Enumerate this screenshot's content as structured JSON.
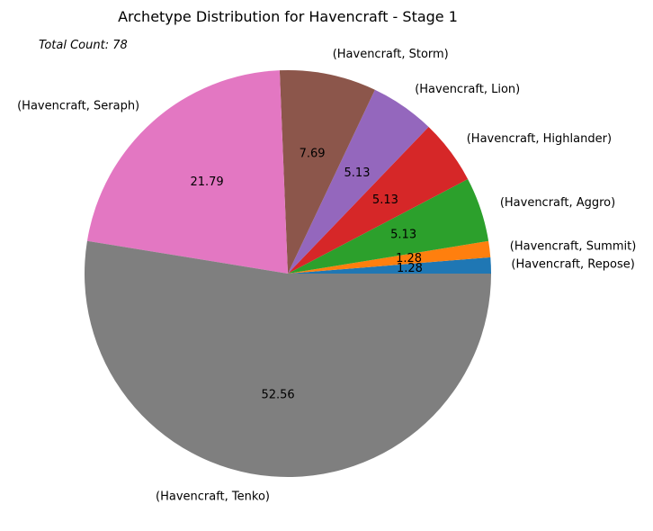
{
  "chart_data": {
    "type": "pie",
    "title": "Archetype Distribution for Havencraft - Stage 1",
    "annotation": "Total Count: 78",
    "start_angle_deg": 0,
    "direction": "counterclockwise",
    "slices": [
      {
        "label": "(Havencraft, Repose)",
        "value": 1.28,
        "value_label": "1.28",
        "color": "#1f77b4"
      },
      {
        "label": "(Havencraft, Summit)",
        "value": 1.28,
        "value_label": "1.28",
        "color": "#ff7f0e"
      },
      {
        "label": "(Havencraft, Aggro)",
        "value": 5.13,
        "value_label": "5.13",
        "color": "#2ca02c"
      },
      {
        "label": "(Havencraft, Highlander)",
        "value": 5.13,
        "value_label": "5.13",
        "color": "#d62728"
      },
      {
        "label": "(Havencraft, Lion)",
        "value": 5.13,
        "value_label": "5.13",
        "color": "#9467bd"
      },
      {
        "label": "(Havencraft, Storm)",
        "value": 7.69,
        "value_label": "7.69",
        "color": "#8c564b"
      },
      {
        "label": "(Havencraft, Seraph)",
        "value": 21.79,
        "value_label": "21.79",
        "color": "#e377c2"
      },
      {
        "label": "(Havencraft, Tenko)",
        "value": 52.56,
        "value_label": "52.56",
        "color": "#7f7f7f"
      }
    ]
  }
}
